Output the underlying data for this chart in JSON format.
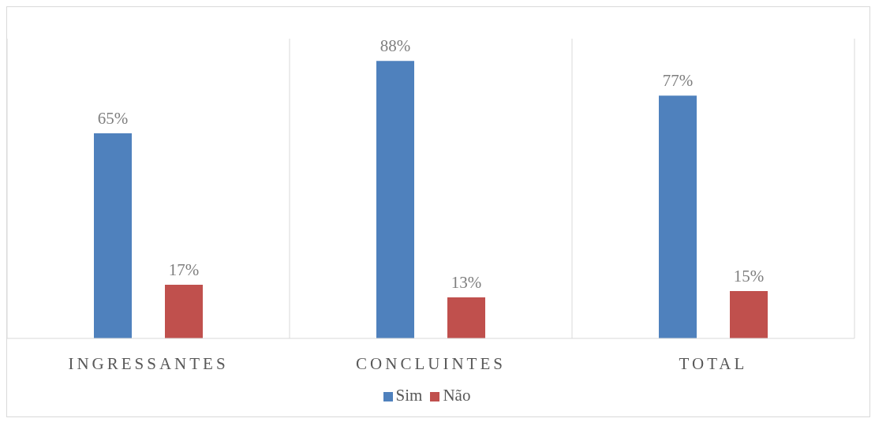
{
  "chart_data": {
    "type": "bar",
    "categories": [
      "INGRESSANTES",
      "CONCLUINTES",
      "TOTAL"
    ],
    "series": [
      {
        "name": "Sim",
        "color": "#4f81bd",
        "values": [
          65,
          88,
          77
        ],
        "value_labels": [
          "65%",
          "88%",
          "77%"
        ]
      },
      {
        "name": "Não",
        "color": "#c0504d",
        "values": [
          17,
          13,
          15
        ],
        "value_labels": [
          "17%",
          "13%",
          "15%"
        ]
      }
    ],
    "grid": "x",
    "legend": "bottom"
  }
}
